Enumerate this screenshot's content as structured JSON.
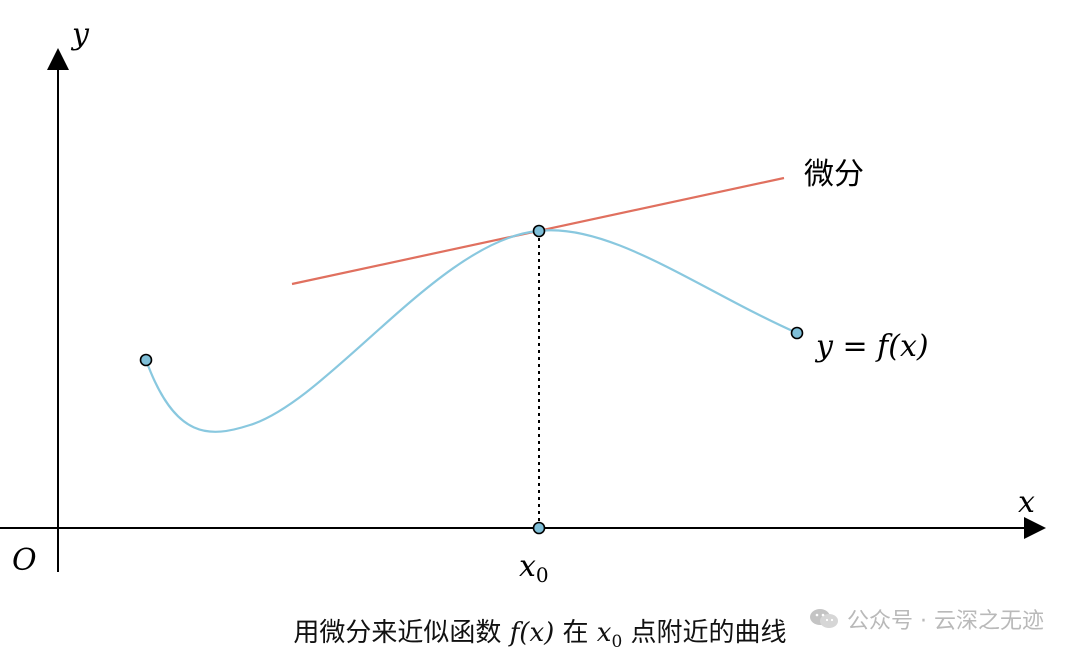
{
  "diagram": {
    "axis_x_label": "x",
    "axis_y_label": "y",
    "origin_label": "O",
    "x0_label_main": "x",
    "x0_label_sub": "0",
    "tangent_label": "微分",
    "curve_label": "y = f(x)",
    "colors": {
      "curve": "#89c8df",
      "tangent": "#e0705f",
      "point_fill": "#7fbfd8",
      "axis": "#000000"
    }
  },
  "caption": {
    "prefix": "用微分来近似函数 ",
    "fx": "f(x)",
    "mid": " 在 ",
    "x": "x",
    "sub": "0",
    "suffix": " 点附近的曲线"
  },
  "watermark": {
    "text": "公众号 · 云深之无迹",
    "icon": "wechat-icon"
  }
}
